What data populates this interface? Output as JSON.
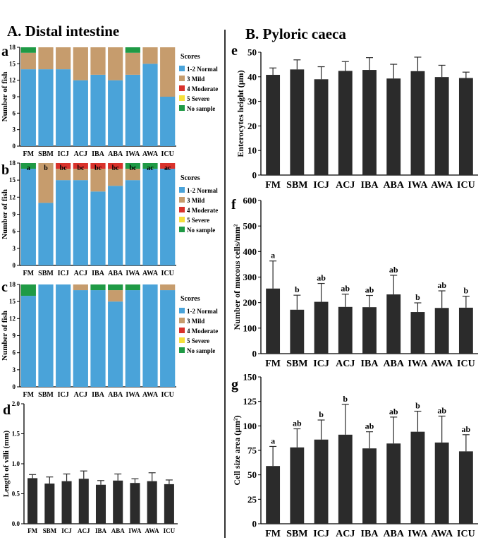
{
  "section_a": {
    "title": "A. Distal intestine"
  },
  "section_b": {
    "title": "B. Pyloric caeca"
  },
  "colors": {
    "normal": "#4aa3d9",
    "mild": "#c69c6d",
    "moderate": "#d9322b",
    "severe": "#f6e03a",
    "no_sample": "#1f9a45",
    "bar": "#2b2b2b"
  },
  "chart_data": [
    {
      "id": "a",
      "type": "bar",
      "stacked": true,
      "categories": [
        "FM",
        "SBM",
        "ICJ",
        "ACJ",
        "IBA",
        "ABA",
        "IWA",
        "AWA",
        "ICU"
      ],
      "ylabel": "Number of fish",
      "ylim": [
        0,
        18
      ],
      "yticks": [
        0,
        3,
        6,
        9,
        12,
        15,
        18
      ],
      "legend": {
        "title": "Scores",
        "position": "right"
      },
      "series": [
        {
          "name": "1-2 Normal",
          "color_key": "normal",
          "values": [
            14,
            14,
            14,
            12,
            13,
            12,
            13,
            15,
            9
          ]
        },
        {
          "name": "3 Mild",
          "color_key": "mild",
          "values": [
            3,
            4,
            4,
            6,
            5,
            6,
            4,
            3,
            9
          ]
        },
        {
          "name": "4 Moderate",
          "color_key": "moderate",
          "values": [
            0,
            0,
            0,
            0,
            0,
            0,
            0,
            0,
            0
          ]
        },
        {
          "name": "5 Severe",
          "color_key": "severe",
          "values": [
            0,
            0,
            0,
            0,
            0,
            0,
            0,
            0,
            0
          ]
        },
        {
          "name": "No sample",
          "color_key": "no_sample",
          "values": [
            1,
            0,
            0,
            0,
            0,
            0,
            1,
            0,
            0
          ]
        }
      ]
    },
    {
      "id": "b",
      "type": "bar",
      "stacked": true,
      "categories": [
        "FM",
        "SBM",
        "ICJ",
        "ACJ",
        "IBA",
        "ABA",
        "IWA",
        "AWA",
        "ICU"
      ],
      "ylabel": "Number of fish",
      "ylim": [
        0,
        18
      ],
      "yticks": [
        0,
        3,
        6,
        9,
        12,
        15,
        18
      ],
      "legend": {
        "title": "Scores",
        "position": "right"
      },
      "annotations": [
        "a",
        "b",
        "bc",
        "bc",
        "bc",
        "bc",
        "bc",
        "ac",
        "ac"
      ],
      "series": [
        {
          "name": "1-2 Normal",
          "color_key": "normal",
          "values": [
            17,
            11,
            15,
            15,
            13,
            14,
            15,
            17,
            17
          ]
        },
        {
          "name": "3 Mild",
          "color_key": "mild",
          "values": [
            0,
            7,
            2,
            2,
            4,
            3,
            2,
            0,
            0
          ]
        },
        {
          "name": "4 Moderate",
          "color_key": "moderate",
          "values": [
            0,
            0,
            1,
            1,
            1,
            1,
            0,
            0,
            1
          ]
        },
        {
          "name": "5 Severe",
          "color_key": "severe",
          "values": [
            0,
            0,
            0,
            0,
            0,
            0,
            0,
            0,
            0
          ]
        },
        {
          "name": "No sample",
          "color_key": "no_sample",
          "values": [
            1,
            0,
            0,
            0,
            0,
            0,
            1,
            1,
            0
          ]
        }
      ]
    },
    {
      "id": "c",
      "type": "bar",
      "stacked": true,
      "categories": [
        "FM",
        "SBM",
        "ICJ",
        "ACJ",
        "IBA",
        "ABA",
        "IWA",
        "AWA",
        "ICU"
      ],
      "ylabel": "Number of fish",
      "ylim": [
        0,
        18
      ],
      "yticks": [
        0,
        3,
        6,
        9,
        12,
        15,
        18
      ],
      "legend": {
        "title": "Scores",
        "position": "right"
      },
      "series": [
        {
          "name": "1-2 Normal",
          "color_key": "normal",
          "values": [
            16,
            18,
            18,
            17,
            17,
            15,
            17,
            18,
            17
          ]
        },
        {
          "name": "3 Mild",
          "color_key": "mild",
          "values": [
            0,
            0,
            0,
            1,
            0,
            2,
            0,
            0,
            1
          ]
        },
        {
          "name": "4 Moderate",
          "color_key": "moderate",
          "values": [
            0,
            0,
            0,
            0,
            0,
            0,
            0,
            0,
            0
          ]
        },
        {
          "name": "5 Severe",
          "color_key": "severe",
          "values": [
            0,
            0,
            0,
            0,
            0,
            0,
            0,
            0,
            0
          ]
        },
        {
          "name": "No sample",
          "color_key": "no_sample",
          "values": [
            2,
            0,
            0,
            0,
            1,
            1,
            1,
            0,
            0
          ]
        }
      ]
    },
    {
      "id": "d",
      "type": "bar",
      "categories": [
        "FM",
        "SBM",
        "ICJ",
        "ACJ",
        "IBA",
        "ABA",
        "IWA",
        "AWA",
        "ICU"
      ],
      "ylabel": "Length of villi (mm)",
      "ylim": [
        0,
        2
      ],
      "yticks": [
        "0.0",
        "0.5",
        "1.0",
        "1.5",
        "2.0"
      ],
      "values": [
        0.76,
        0.67,
        0.71,
        0.75,
        0.65,
        0.72,
        0.68,
        0.71,
        0.66
      ],
      "errors": [
        0.06,
        0.11,
        0.12,
        0.13,
        0.07,
        0.11,
        0.07,
        0.14,
        0.07
      ]
    },
    {
      "id": "e",
      "type": "bar",
      "categories": [
        "FM",
        "SBM",
        "ICJ",
        "ACJ",
        "IBA",
        "ABA",
        "IWA",
        "AWA",
        "ICU"
      ],
      "ylabel": "Enterocytes height (µm)",
      "ylim": [
        0,
        50
      ],
      "yticks": [
        0,
        10,
        20,
        30,
        40,
        50
      ],
      "values": [
        40.8,
        43.0,
        39.0,
        42.4,
        42.8,
        39.3,
        42.3,
        39.9,
        39.5
      ],
      "errors": [
        2.8,
        3.9,
        5.1,
        3.8,
        5.0,
        5.8,
        5.7,
        4.8,
        2.4
      ]
    },
    {
      "id": "f",
      "type": "bar",
      "categories": [
        "FM",
        "SBM",
        "ICJ",
        "ACJ",
        "IBA",
        "ABA",
        "IWA",
        "AWA",
        "ICU"
      ],
      "ylabel": "Number of mucous cells/mm²",
      "ylim": [
        0,
        600
      ],
      "yticks": [
        0,
        100,
        200,
        300,
        400,
        500,
        600
      ],
      "values": [
        255,
        172,
        203,
        183,
        182,
        232,
        163,
        179,
        180
      ],
      "errors": [
        108,
        57,
        72,
        50,
        46,
        75,
        36,
        67,
        45
      ],
      "annotations": [
        "a",
        "b",
        "ab",
        "ab",
        "ab",
        "ab",
        "b",
        "ab",
        "b"
      ]
    },
    {
      "id": "g",
      "type": "bar",
      "categories": [
        "FM",
        "SBM",
        "ICJ",
        "ACJ",
        "IBA",
        "ABA",
        "IWA",
        "AWA",
        "ICU"
      ],
      "ylabel": "Cell size area (µm²)",
      "ylim": [
        0,
        150
      ],
      "yticks": [
        0,
        25,
        50,
        75,
        100,
        125,
        150
      ],
      "values": [
        59,
        78,
        86,
        91,
        77,
        82,
        94,
        83,
        74
      ],
      "errors": [
        20,
        19,
        20,
        31,
        17,
        27,
        21,
        27,
        17
      ],
      "annotations": [
        "a",
        "ab",
        "b",
        "b",
        "ab",
        "ab",
        "b",
        "ab",
        "ab"
      ]
    }
  ]
}
